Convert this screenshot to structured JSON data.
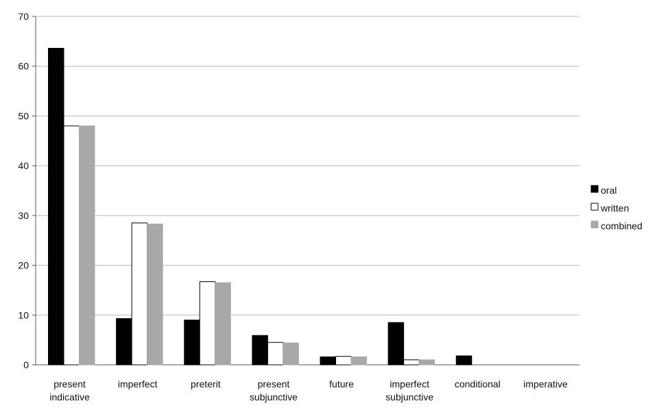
{
  "chart_data": {
    "type": "bar",
    "title": "",
    "xlabel": "",
    "ylabel": "",
    "ylim": [
      0,
      70
    ],
    "yticks": [
      0,
      10,
      20,
      30,
      40,
      50,
      60,
      70
    ],
    "grid": true,
    "legend_position": "right",
    "categories": [
      [
        "present",
        "indicative"
      ],
      [
        "imperfect"
      ],
      [
        "preterit"
      ],
      [
        "present",
        "subjunctive"
      ],
      [
        "future"
      ],
      [
        "imperfect",
        "subjunctive"
      ],
      [
        "conditional"
      ],
      [
        "imperative"
      ]
    ],
    "series": [
      {
        "name": "oral",
        "color": "#000000",
        "stroke": "#000000",
        "values": [
          63.6,
          9.3,
          9.0,
          5.9,
          1.6,
          8.5,
          1.8,
          0
        ]
      },
      {
        "name": "written",
        "color": "#ffffff",
        "stroke": "#000000",
        "values": [
          48.0,
          28.5,
          16.7,
          4.5,
          1.7,
          1.0,
          0,
          0
        ]
      },
      {
        "name": "combined",
        "color": "#a8a8a8",
        "stroke": "#a8a8a8",
        "values": [
          48.0,
          28.3,
          16.5,
          4.4,
          1.6,
          1.0,
          0,
          0
        ]
      }
    ]
  }
}
